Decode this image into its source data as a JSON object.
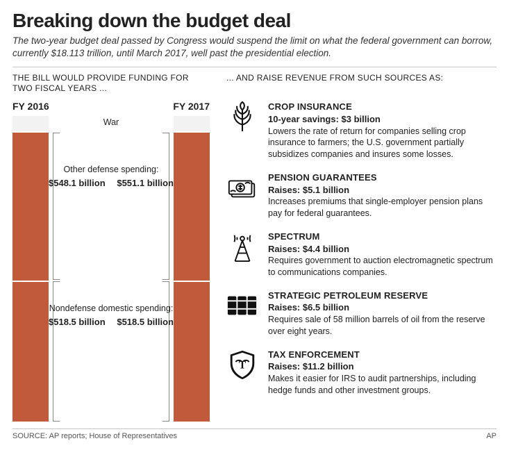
{
  "headline": "Breaking down the budget deal",
  "subhead": "The two-year budget deal passed by Congress would suspend the limit on what the federal government can borrow, currently $18.113 trillion, until March 2017, well past the presidential election.",
  "left_section_label": "THE BILL WOULD PROVIDE FUNDING FOR TWO FISCAL YEARS ...",
  "right_section_label": "... AND RAISE REVENUE FROM SUCH SOURCES AS:",
  "colors": {
    "bar_fill": "#c05a3a",
    "war_fill": "#f2f2f2",
    "background": "#ffffff",
    "rule": "#c8c8c8",
    "bracket": "#888888",
    "text": "#222222"
  },
  "bars": {
    "years": [
      "FY 2016",
      "FY 2017"
    ],
    "segments": {
      "war_label": "War",
      "defense_label": "Other defense spending:",
      "nondefense_label": "Nondefense domestic spending:"
    },
    "values": {
      "defense_2016": "$548.1 billion",
      "defense_2017": "$551.1 billion",
      "nondefense_2016": "$518.5 billion",
      "nondefense_2017": "$518.5 billion"
    }
  },
  "revenue_items": [
    {
      "icon": "wheat",
      "title": "CROP INSURANCE",
      "amount": "10-year savings: $3 billion",
      "desc": "Lowers the rate of return for companies selling crop insurance to farmers; the U.S. government partially subsidizes companies and insures some losses."
    },
    {
      "icon": "cash",
      "title": "PENSION GUARANTEES",
      "amount": "Raises: $5.1 billion",
      "desc": "Increases premiums that single-employer pension plans pay for federal guarantees."
    },
    {
      "icon": "tower",
      "title": "SPECTRUM",
      "amount": "Raises: $4.4 billion",
      "desc": "Requires government to auction electromagnetic spectrum to communications companies."
    },
    {
      "icon": "barrels",
      "title": "STRATEGIC PETROLEUM RESERVE",
      "amount": "Raises: $6.5 billion",
      "desc": "Requires sale of 58 million barrels of oil from the reserve over eight years."
    },
    {
      "icon": "irs",
      "title": "TAX ENFORCEMENT",
      "amount": "Raises: $11.2 billion",
      "desc": "Makes it easier for IRS to audit partnerships, including hedge funds and other investment groups."
    }
  ],
  "source": "SOURCE: AP reports; House of Representatives",
  "credit": "AP"
}
